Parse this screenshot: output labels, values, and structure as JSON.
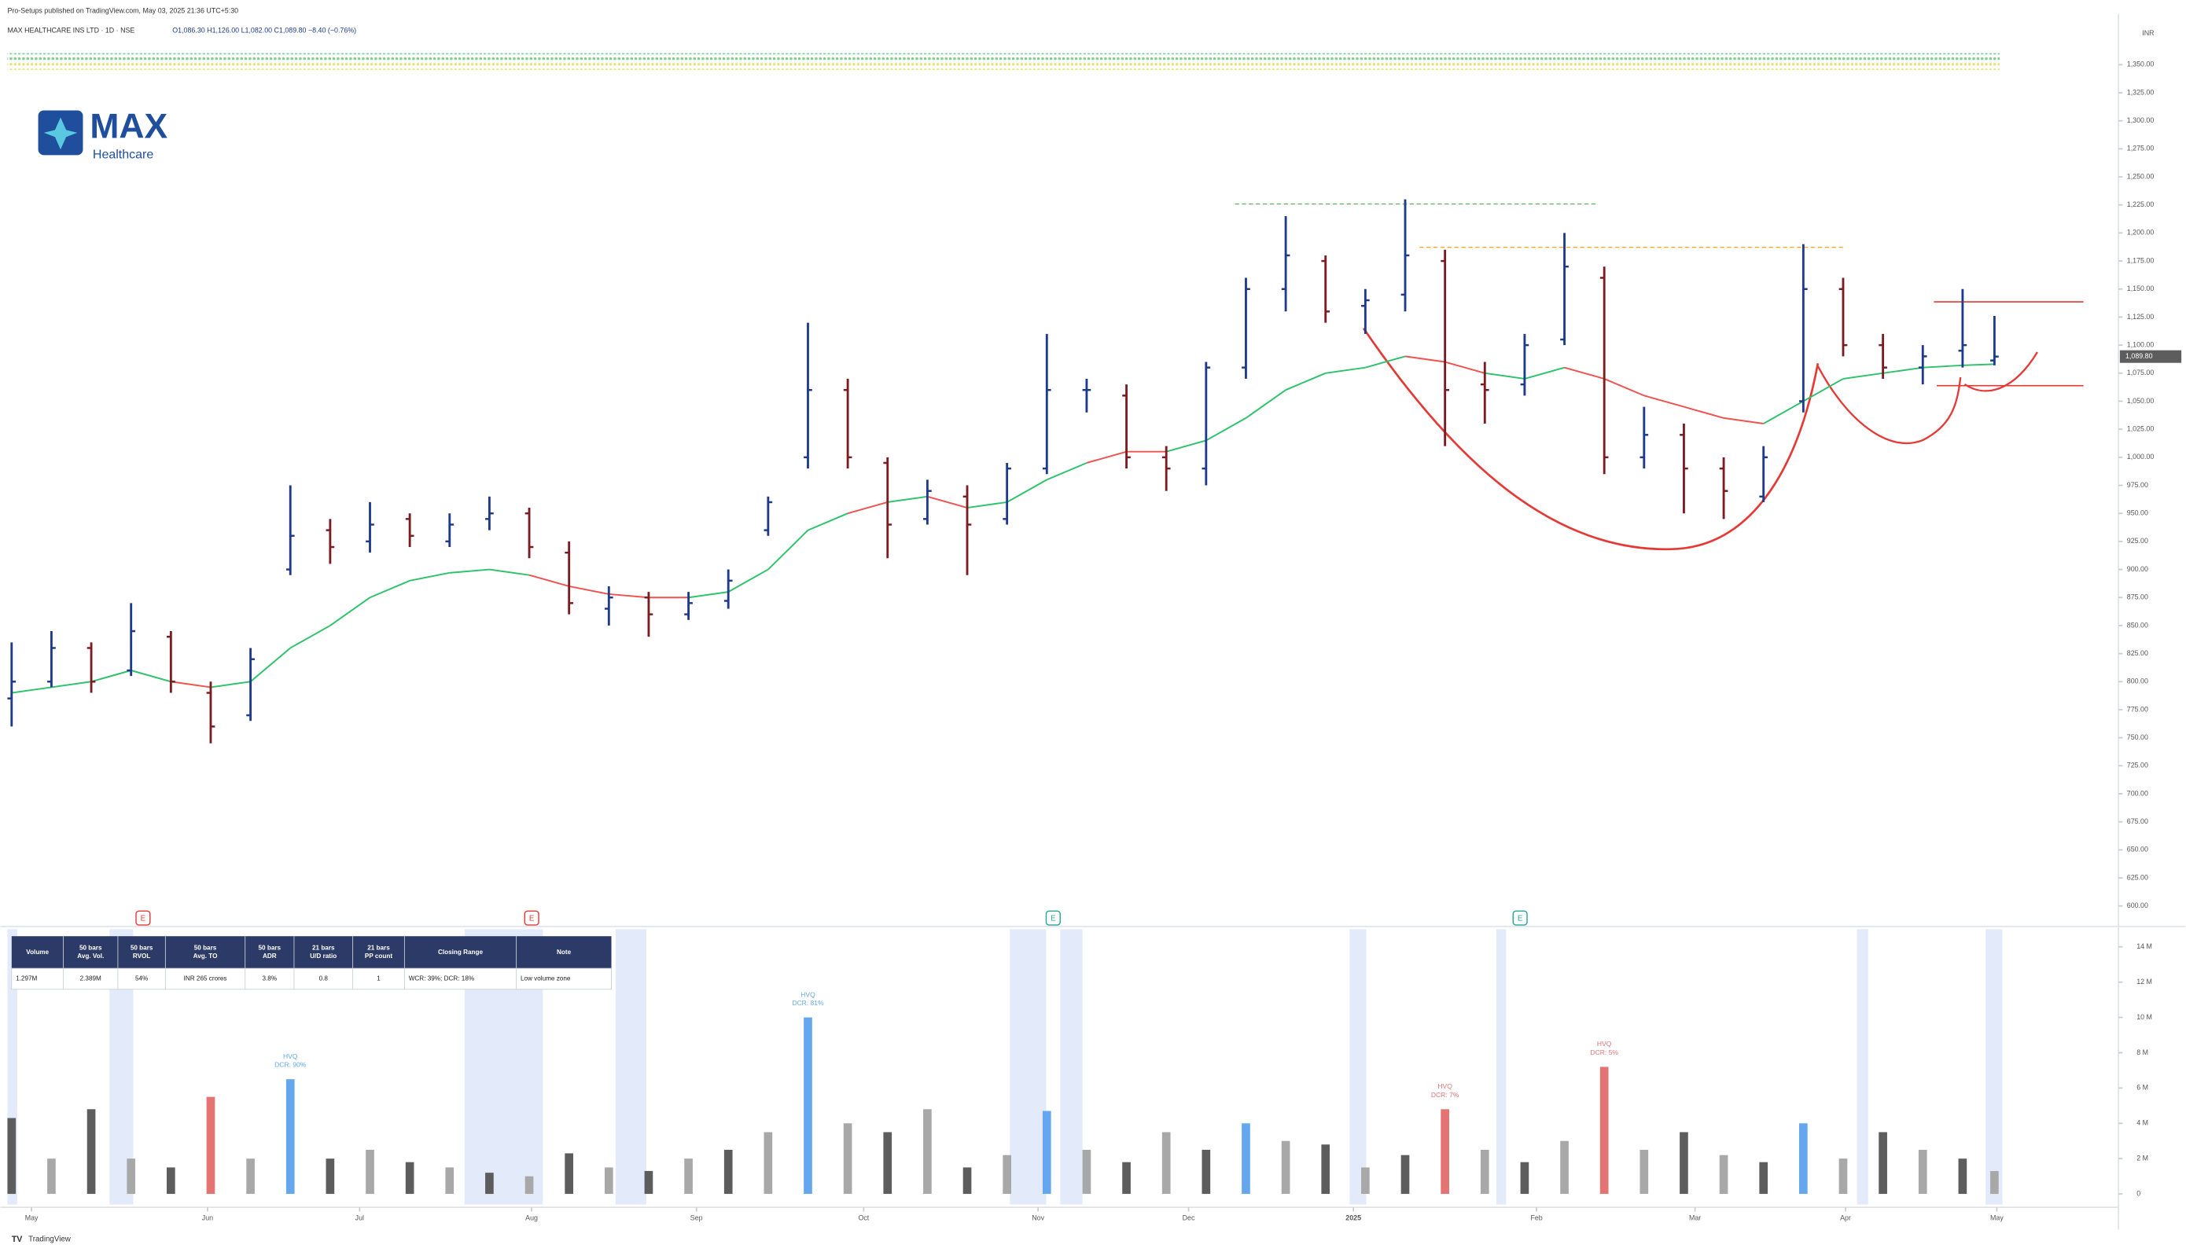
{
  "header": {
    "published": "Pro-Setups published on TradingView.com, May 03, 2025 21:36 UTC+5:30",
    "symbol": "MAX HEALTHCARE INS LTD · 1D · NSE",
    "ohlc": "O1,086.30 H1,126.00 L1,082.00 C1,089.80 −8.40 (−0.76%)"
  },
  "logo": {
    "name": "MAX",
    "sub": "Healthcare"
  },
  "footer": "TradingView",
  "events": [
    "E",
    "E",
    "E",
    "E"
  ],
  "table": {
    "headers": [
      [
        "Volume"
      ],
      [
        "50 bars",
        "Avg. Vol."
      ],
      [
        "50 bars",
        "RVOL"
      ],
      [
        "50 bars",
        "Avg. TO"
      ],
      [
        "50 bars",
        "ADR"
      ],
      [
        "21 bars",
        "U/D ratio"
      ],
      [
        "21 bars",
        "PP count"
      ],
      [
        "Closing Range"
      ],
      [
        "Note"
      ]
    ],
    "row": [
      "1.297M",
      "2.389M",
      "54%",
      "INR 265 crores",
      "3.8%",
      "0.8",
      "1",
      "WCR: 39%; DCR: 18%",
      "Low volume zone"
    ]
  },
  "chart_data": [
    {
      "type": "ohlc",
      "currency": "INR",
      "x": [
        0,
        5,
        10,
        15,
        20,
        25,
        30,
        35,
        40,
        45,
        50,
        55,
        60,
        65,
        70,
        75,
        80,
        85,
        90,
        95,
        100,
        105,
        110,
        115,
        120,
        125,
        130,
        135,
        140,
        145,
        150,
        155,
        160,
        165,
        170,
        175,
        180,
        185,
        190,
        195,
        200,
        205,
        210,
        215,
        220,
        225,
        230,
        235,
        240,
        245,
        249
      ],
      "open": [
        785,
        800,
        830,
        810,
        840,
        790,
        770,
        900,
        935,
        925,
        945,
        925,
        945,
        950,
        915,
        865,
        875,
        860,
        872,
        935,
        1000,
        1060,
        995,
        945,
        965,
        945,
        990,
        1060,
        1055,
        1000,
        990,
        1080,
        1150,
        1175,
        1135,
        1145,
        1175,
        1065,
        1065,
        1105,
        1160,
        1000,
        1020,
        990,
        965,
        1050,
        1150,
        1100,
        1080,
        1095,
        1086.3
      ],
      "high": [
        835,
        845,
        835,
        870,
        845,
        800,
        830,
        975,
        945,
        960,
        950,
        950,
        965,
        955,
        925,
        885,
        880,
        880,
        900,
        965,
        1120,
        1070,
        1000,
        980,
        975,
        995,
        1110,
        1070,
        1065,
        1010,
        1085,
        1160,
        1215,
        1180,
        1150,
        1230,
        1185,
        1085,
        1110,
        1200,
        1170,
        1045,
        1030,
        1000,
        1010,
        1190,
        1160,
        1110,
        1100,
        1150,
        1126
      ],
      "low": [
        760,
        795,
        790,
        805,
        790,
        745,
        765,
        895,
        905,
        915,
        920,
        920,
        935,
        910,
        860,
        850,
        840,
        855,
        865,
        930,
        990,
        990,
        910,
        940,
        895,
        940,
        985,
        1040,
        990,
        970,
        975,
        1070,
        1130,
        1120,
        1110,
        1130,
        1010,
        1030,
        1055,
        1100,
        985,
        990,
        950,
        945,
        960,
        1040,
        1090,
        1070,
        1065,
        1080,
        1082
      ],
      "close": [
        800,
        830,
        800,
        845,
        800,
        760,
        820,
        930,
        920,
        940,
        930,
        940,
        950,
        920,
        870,
        875,
        860,
        870,
        890,
        960,
        1060,
        1000,
        940,
        970,
        940,
        990,
        1060,
        1060,
        1000,
        990,
        1080,
        1150,
        1180,
        1130,
        1140,
        1180,
        1060,
        1060,
        1100,
        1170,
        1000,
        1020,
        990,
        970,
        1000,
        1150,
        1100,
        1080,
        1090,
        1100,
        1089.8
      ],
      "colors": {
        "up": "#1e3a8a",
        "down": "#7b1c22"
      },
      "ma": {
        "values": [
          790,
          795,
          800,
          810,
          800,
          795,
          800,
          830,
          850,
          875,
          890,
          897,
          900,
          895,
          885,
          878,
          875,
          875,
          880,
          900,
          935,
          950,
          960,
          965,
          955,
          960,
          980,
          995,
          1005,
          1005,
          1015,
          1035,
          1060,
          1075,
          1080,
          1090,
          1085,
          1075,
          1070,
          1080,
          1070,
          1055,
          1045,
          1035,
          1030,
          1050,
          1070,
          1075,
          1080,
          1082,
          1083
        ],
        "colors": {
          "above": "#2ec26a",
          "below": "#ef5350"
        }
      },
      "last_price": {
        "value": 1089.8,
        "label": "1,089.80"
      },
      "xlim": [
        0,
        250
      ],
      "xticks": [
        {
          "value": 2.5,
          "label": "May"
        },
        {
          "value": 24.6,
          "label": "Jun"
        },
        {
          "value": 43.7,
          "label": "Jul"
        },
        {
          "value": 65.3,
          "label": "Aug"
        },
        {
          "value": 86,
          "label": "Sep"
        },
        {
          "value": 107,
          "label": "Oct"
        },
        {
          "value": 128.9,
          "label": "Nov"
        },
        {
          "value": 147.8,
          "label": "Dec"
        },
        {
          "value": 168.5,
          "label": "2025"
        },
        {
          "value": 191.5,
          "label": "Feb"
        },
        {
          "value": 211.4,
          "label": "Mar"
        },
        {
          "value": 230.3,
          "label": "Apr"
        },
        {
          "value": 249.3,
          "label": "May"
        }
      ],
      "ylim": [
        583,
        1389
      ],
      "yticks": [
        {
          "value": 600,
          "label": "600.00"
        },
        {
          "value": 625,
          "label": "625.00"
        },
        {
          "value": 650,
          "label": "650.00"
        },
        {
          "value": 675,
          "label": "675.00"
        },
        {
          "value": 700,
          "label": "700.00"
        },
        {
          "value": 725,
          "label": "725.00"
        },
        {
          "value": 750,
          "label": "750.00"
        },
        {
          "value": 775,
          "label": "775.00"
        },
        {
          "value": 800,
          "label": "800.00"
        },
        {
          "value": 825,
          "label": "825.00"
        },
        {
          "value": 850,
          "label": "850.00"
        },
        {
          "value": 875,
          "label": "875.00"
        },
        {
          "value": 900,
          "label": "900.00"
        },
        {
          "value": 925,
          "label": "925.00"
        },
        {
          "value": 950,
          "label": "950.00"
        },
        {
          "value": 975,
          "label": "975.00"
        },
        {
          "value": 1000,
          "label": "1,000.00"
        },
        {
          "value": 1025,
          "label": "1,025.00"
        },
        {
          "value": 1050,
          "label": "1,050.00"
        },
        {
          "value": 1075,
          "label": "1,075.00"
        },
        {
          "value": 1100,
          "label": "1,100.00"
        },
        {
          "value": 1125,
          "label": "1,125.00"
        },
        {
          "value": 1150,
          "label": "1,150.00"
        },
        {
          "value": 1175,
          "label": "1,175.00"
        },
        {
          "value": 1200,
          "label": "1,200.00"
        },
        {
          "value": 1225,
          "label": "1,225.00"
        },
        {
          "value": 1250,
          "label": "1,250.00"
        },
        {
          "value": 1275,
          "label": "1,275.00"
        },
        {
          "value": 1300,
          "label": "1,300.00"
        },
        {
          "value": 1325,
          "label": "1,325.00"
        },
        {
          "value": 1350,
          "label": "1,350.00"
        }
      ]
    },
    {
      "type": "bar",
      "x": [
        0,
        5,
        10,
        15,
        20,
        25,
        30,
        35,
        40,
        45,
        50,
        55,
        60,
        65,
        70,
        75,
        80,
        85,
        90,
        95,
        100,
        105,
        110,
        115,
        120,
        125,
        130,
        135,
        140,
        145,
        150,
        155,
        160,
        165,
        170,
        175,
        180,
        185,
        190,
        195,
        200,
        205,
        210,
        215,
        220,
        225,
        230,
        235,
        240,
        245,
        249
      ],
      "values": [
        4.3,
        2.0,
        4.8,
        2.0,
        1.5,
        5.5,
        2.0,
        6.5,
        2.0,
        2.5,
        1.8,
        1.5,
        1.2,
        1.0,
        2.3,
        1.5,
        1.3,
        2.0,
        2.5,
        3.5,
        10.0,
        4.0,
        3.5,
        4.8,
        1.5,
        2.2,
        4.7,
        2.5,
        1.8,
        3.5,
        2.5,
        4.0,
        3.0,
        2.8,
        1.5,
        2.2,
        4.8,
        2.5,
        1.8,
        3.0,
        7.2,
        2.5,
        3.5,
        2.2,
        1.8,
        4.0,
        2.0,
        3.5,
        2.5,
        2.0,
        1.297
      ],
      "colors": [
        "#5d5d5d",
        "#a8a8a8",
        "#5d5d5d",
        "#a8a8a8",
        "#5d5d5d",
        "#e57373",
        "#a8a8a8",
        "#64a7ef",
        "#5d5d5d",
        "#a8a8a8",
        "#5d5d5d",
        "#a8a8a8",
        "#5d5d5d",
        "#a8a8a8",
        "#5d5d5d",
        "#a8a8a8",
        "#5d5d5d",
        "#a8a8a8",
        "#5d5d5d",
        "#a8a8a8",
        "#64a7ef",
        "#a8a8a8",
        "#5d5d5d",
        "#a8a8a8",
        "#5d5d5d",
        "#a8a8a8",
        "#64a7ef",
        "#a8a8a8",
        "#5d5d5d",
        "#a8a8a8",
        "#5d5d5d",
        "#64a7ef",
        "#a8a8a8",
        "#5d5d5d",
        "#a8a8a8",
        "#5d5d5d",
        "#e57373",
        "#a8a8a8",
        "#5d5d5d",
        "#a8a8a8",
        "#e57373",
        "#a8a8a8",
        "#5d5d5d",
        "#a8a8a8",
        "#5d5d5d",
        "#64a7ef",
        "#a8a8a8",
        "#5d5d5d",
        "#a8a8a8",
        "#5d5d5d",
        "#a8a8a8"
      ],
      "annotations": [
        {
          "x": 35,
          "text": "HVQ",
          "detail": "DCR: 90%"
        },
        {
          "x": 100,
          "text": "HVQ",
          "detail": "DCR: 81%"
        },
        {
          "x": 180,
          "text": "HVQ",
          "detail": "DCR: 7%"
        },
        {
          "x": 200,
          "text": "HVQ",
          "detail": "DCR: 5%"
        }
      ],
      "ylim": [
        -0.6,
        15
      ],
      "yticks": [
        0,
        {
          "value": 2,
          "label": "2 M"
        },
        {
          "value": 4,
          "label": "4 M"
        },
        {
          "value": 6,
          "label": "6 M"
        },
        {
          "value": 8,
          "label": "8 M"
        },
        {
          "value": 10,
          "label": "10 M"
        },
        {
          "value": 12,
          "label": "12 M"
        },
        {
          "value": 14,
          "label": "14 M"
        }
      ]
    }
  ]
}
